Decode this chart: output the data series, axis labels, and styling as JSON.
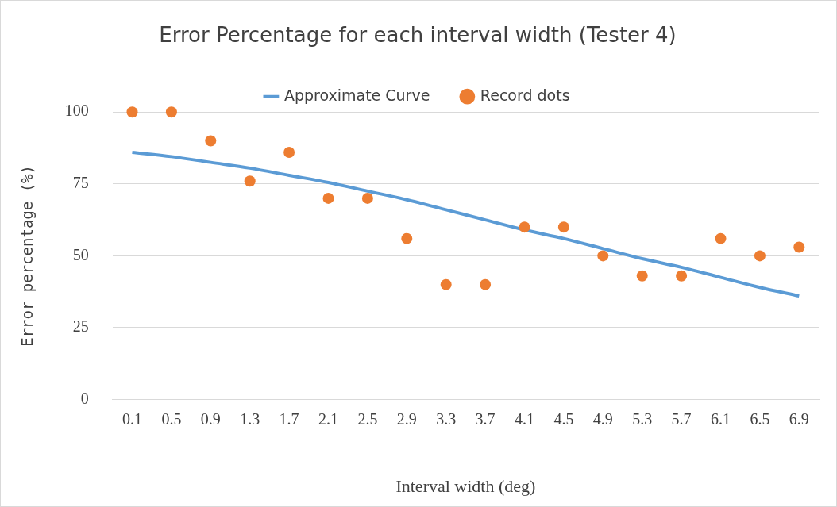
{
  "chart_data": {
    "type": "line",
    "title": "Error Percentage for each interval width (Tester 4)",
    "xlabel": "Interval width (deg)",
    "ylabel": "Error percentage (%)",
    "categories": [
      "0.1",
      "0.5",
      "0.9",
      "1.3",
      "1.7",
      "2.1",
      "2.5",
      "2.9",
      "3.3",
      "3.7",
      "4.1",
      "4.5",
      "4.9",
      "5.3",
      "5.7",
      "6.1",
      "6.5",
      "6.9"
    ],
    "series": [
      {
        "name": "Approximate Curve",
        "color": "#5b9bd5",
        "marker": "none",
        "values": [
          86,
          84.5,
          82.5,
          80.5,
          78,
          75.5,
          72.5,
          69.5,
          66,
          62.5,
          59,
          56,
          52.5,
          49,
          46,
          42.5,
          39,
          36
        ]
      },
      {
        "name": "Record dots",
        "type": "scatter",
        "color": "#ed7d31",
        "marker": "circle",
        "values": [
          100,
          100,
          90,
          76,
          86,
          70,
          70,
          56,
          40,
          40,
          60,
          60,
          50,
          43,
          43,
          56,
          50,
          53
        ]
      }
    ],
    "ylim": [
      0,
      100
    ],
    "yticks": [
      0,
      25,
      50,
      75,
      100
    ],
    "grid": "y",
    "legend": "top"
  }
}
